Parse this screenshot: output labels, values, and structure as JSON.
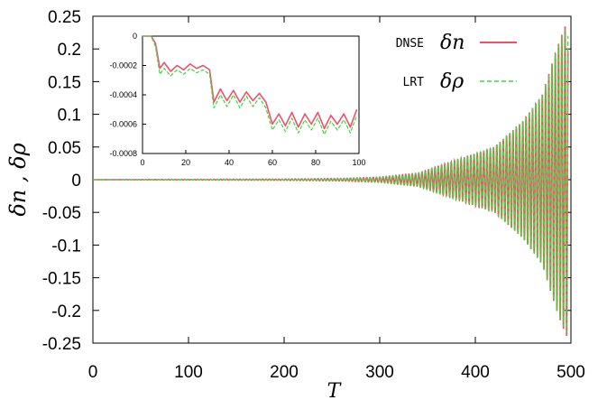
{
  "chart_data": [
    {
      "type": "line",
      "title": "",
      "xlabel": "T",
      "ylabel": "δn , δρ",
      "xlim": [
        0,
        500
      ],
      "ylim": [
        -0.25,
        0.25
      ],
      "x_ticks": [
        "0",
        "100",
        "200",
        "300",
        "400",
        "500"
      ],
      "y_ticks": [
        "0.25",
        "0.2",
        "0.15",
        "0.1",
        "0.05",
        "0",
        "-0.05",
        "-0.1",
        "-0.15",
        "-0.2",
        "-0.25"
      ],
      "grid": false,
      "legend": {
        "placement": "top-right",
        "entries": [
          {
            "tag": "DNSE",
            "symbol": "δn",
            "style": "solid",
            "color": "#f0506e"
          },
          {
            "tag": "LRT",
            "symbol": "δρ",
            "style": "dashed",
            "color": "#33dd33"
          }
        ]
      },
      "series": [
        {
          "tag": "DNSE",
          "symbol": "δn",
          "color": "#f0506e",
          "style": "solid",
          "envelope": {
            "T": [
              0,
              100,
              200,
              260,
              300,
              340,
              380,
              420,
              450,
              470,
              485,
              495
            ],
            "amplitude": [
              0.0,
              0.0005,
              0.001,
              0.002,
              0.004,
              0.01,
              0.03,
              0.05,
              0.09,
              0.13,
              0.2,
              0.24
            ]
          }
        },
        {
          "tag": "LRT",
          "symbol": "δρ",
          "color": "#33dd33",
          "style": "dashed",
          "envelope": {
            "T": [
              0,
              100,
              200,
              260,
              300,
              340,
              380,
              420,
              450,
              470,
              485,
              495
            ],
            "amplitude": [
              0.0,
              0.0005,
              0.001,
              0.002,
              0.004,
              0.01,
              0.03,
              0.05,
              0.09,
              0.13,
              0.2,
              0.235
            ]
          }
        }
      ]
    },
    {
      "type": "line",
      "title": "",
      "placement": "inset-top-left",
      "xlim": [
        0,
        100
      ],
      "ylim": [
        -0.0008,
        0
      ],
      "x_ticks": [
        "0",
        "20",
        "40",
        "60",
        "80",
        "100"
      ],
      "y_ticks": [
        "0",
        "-0.0002",
        "-0.0004",
        "-0.0006",
        "-0.0008"
      ],
      "series": [
        {
          "tag": "DNSE",
          "color": "#f0506e",
          "style": "solid",
          "x": [
            0,
            4,
            6,
            8,
            10,
            13,
            16,
            19,
            22,
            25,
            28,
            31,
            33,
            36,
            39,
            42,
            45,
            48,
            51,
            54,
            57,
            60,
            63,
            66,
            69,
            72,
            75,
            78,
            81,
            84,
            87,
            90,
            93,
            96,
            99
          ],
          "y": [
            0,
            0,
            -5e-05,
            -0.00022,
            -0.00018,
            -0.00024,
            -0.0002,
            -0.00023,
            -0.00019,
            -0.00022,
            -0.0002,
            -0.00023,
            -0.00045,
            -0.00036,
            -0.00044,
            -0.00037,
            -0.00045,
            -0.00038,
            -0.00044,
            -0.00039,
            -0.00045,
            -0.0006,
            -0.00053,
            -0.00061,
            -0.00052,
            -0.00062,
            -0.00053,
            -0.0006,
            -0.00052,
            -0.00063,
            -0.00054,
            -0.0006,
            -0.00053,
            -0.00062,
            -0.0005
          ]
        },
        {
          "tag": "LRT",
          "color": "#33dd33",
          "style": "dashed",
          "x": [
            0,
            4,
            6,
            8,
            10,
            13,
            16,
            19,
            22,
            25,
            28,
            31,
            33,
            36,
            39,
            42,
            45,
            48,
            51,
            54,
            57,
            60,
            63,
            66,
            69,
            72,
            75,
            78,
            81,
            84,
            87,
            90,
            93,
            96,
            99
          ],
          "y": [
            0,
            0,
            -7e-05,
            -0.00026,
            -0.00022,
            -0.00027,
            -0.00023,
            -0.00026,
            -0.00022,
            -0.00025,
            -0.00023,
            -0.00026,
            -0.00049,
            -0.0004,
            -0.00048,
            -0.0004,
            -0.00049,
            -0.00041,
            -0.00048,
            -0.00042,
            -0.00049,
            -0.00064,
            -0.00057,
            -0.00065,
            -0.00056,
            -0.00066,
            -0.00057,
            -0.00064,
            -0.00056,
            -0.00067,
            -0.00058,
            -0.00064,
            -0.00057,
            -0.00066,
            -0.00054
          ]
        }
      ]
    }
  ]
}
